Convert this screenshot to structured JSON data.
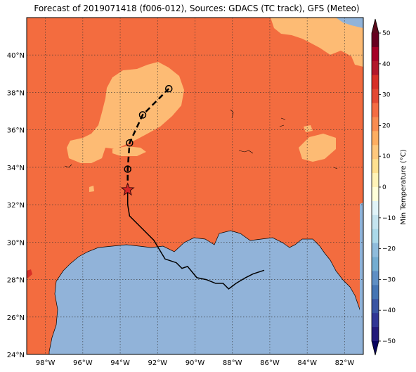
{
  "title": "Forecast of 2019071418 (f006-012), Sources: GDACS (TC track), GFS (Meteo)",
  "map": {
    "lon_range": [
      -99,
      -81
    ],
    "lat_range": [
      24,
      42
    ],
    "lon_ticks": [
      {
        "value": -98,
        "label": "98°W"
      },
      {
        "value": -96,
        "label": "96°W"
      },
      {
        "value": -94,
        "label": "94°W"
      },
      {
        "value": -92,
        "label": "92°W"
      },
      {
        "value": -90,
        "label": "90°W"
      },
      {
        "value": -88,
        "label": "88°W"
      },
      {
        "value": -86,
        "label": "86°W"
      },
      {
        "value": -84,
        "label": "84°W"
      },
      {
        "value": -82,
        "label": "82°W"
      }
    ],
    "lat_ticks": [
      {
        "value": 24,
        "label": "24°N"
      },
      {
        "value": 26,
        "label": "26°N"
      },
      {
        "value": 28,
        "label": "28°N"
      },
      {
        "value": 30,
        "label": "30°N"
      },
      {
        "value": 32,
        "label": "32°N"
      },
      {
        "value": 34,
        "label": "34°N"
      },
      {
        "value": 36,
        "label": "36°N"
      },
      {
        "value": 38,
        "label": "38°N"
      },
      {
        "value": 40,
        "label": "40°N"
      }
    ],
    "grid": true,
    "colors": {
      "land_warm": "#f36c3f",
      "land_mild": "#fdbb74",
      "sea": "#91b3d9",
      "hot_spot": "#d73027"
    },
    "past_track": [
      [
        -93.6,
        32.8
      ],
      [
        -93.6,
        32.0
      ],
      [
        -93.5,
        31.4
      ],
      [
        -92.9,
        30.8
      ],
      [
        -92.2,
        30.1
      ],
      [
        -91.9,
        29.6
      ],
      [
        -91.6,
        29.1
      ],
      [
        -91.0,
        28.9
      ],
      [
        -90.7,
        28.6
      ],
      [
        -90.4,
        28.7
      ],
      [
        -89.9,
        28.1
      ],
      [
        -89.4,
        28.0
      ],
      [
        -88.9,
        27.8
      ],
      [
        -88.5,
        27.8
      ],
      [
        -88.2,
        27.5
      ],
      [
        -87.8,
        27.8
      ],
      [
        -87.3,
        28.1
      ],
      [
        -86.9,
        28.3
      ],
      [
        -86.3,
        28.5
      ]
    ],
    "forecast_track": [
      [
        -93.6,
        32.8
      ],
      [
        -93.6,
        33.9
      ],
      [
        -93.5,
        35.3
      ],
      [
        -92.8,
        36.8
      ],
      [
        -91.4,
        38.2
      ]
    ],
    "forecast_points": [
      [
        -93.6,
        33.9
      ],
      [
        -93.5,
        35.3
      ],
      [
        -92.8,
        36.8
      ],
      [
        -91.4,
        38.2
      ]
    ],
    "current_position": [
      -93.6,
      32.8
    ]
  },
  "colorbar": {
    "label": "Min Temperature (°C)",
    "ticks": [
      50,
      40,
      30,
      20,
      10,
      0,
      -10,
      -20,
      -30,
      -40,
      -50
    ],
    "tick_labels": [
      "50",
      "40",
      "30",
      "20",
      "10",
      "0",
      "−10",
      "−20",
      "−30",
      "−40",
      "−50"
    ],
    "colors_top_to_bottom": [
      "#67001f",
      "#a50026",
      "#b2182b",
      "#d73027",
      "#e34a33",
      "#f46d43",
      "#f88c51",
      "#fdae61",
      "#fec87d",
      "#fee090",
      "#fff3b8",
      "#ffffd9",
      "#e0f3f8",
      "#c5e4ef",
      "#abd9e9",
      "#8fbcdc",
      "#74add1",
      "#5f8fc4",
      "#4575b4",
      "#3a55a3",
      "#313695",
      "#231a7a"
    ],
    "arrow_top_color": "#5c0a1c",
    "arrow_bottom_color": "#08035e"
  }
}
